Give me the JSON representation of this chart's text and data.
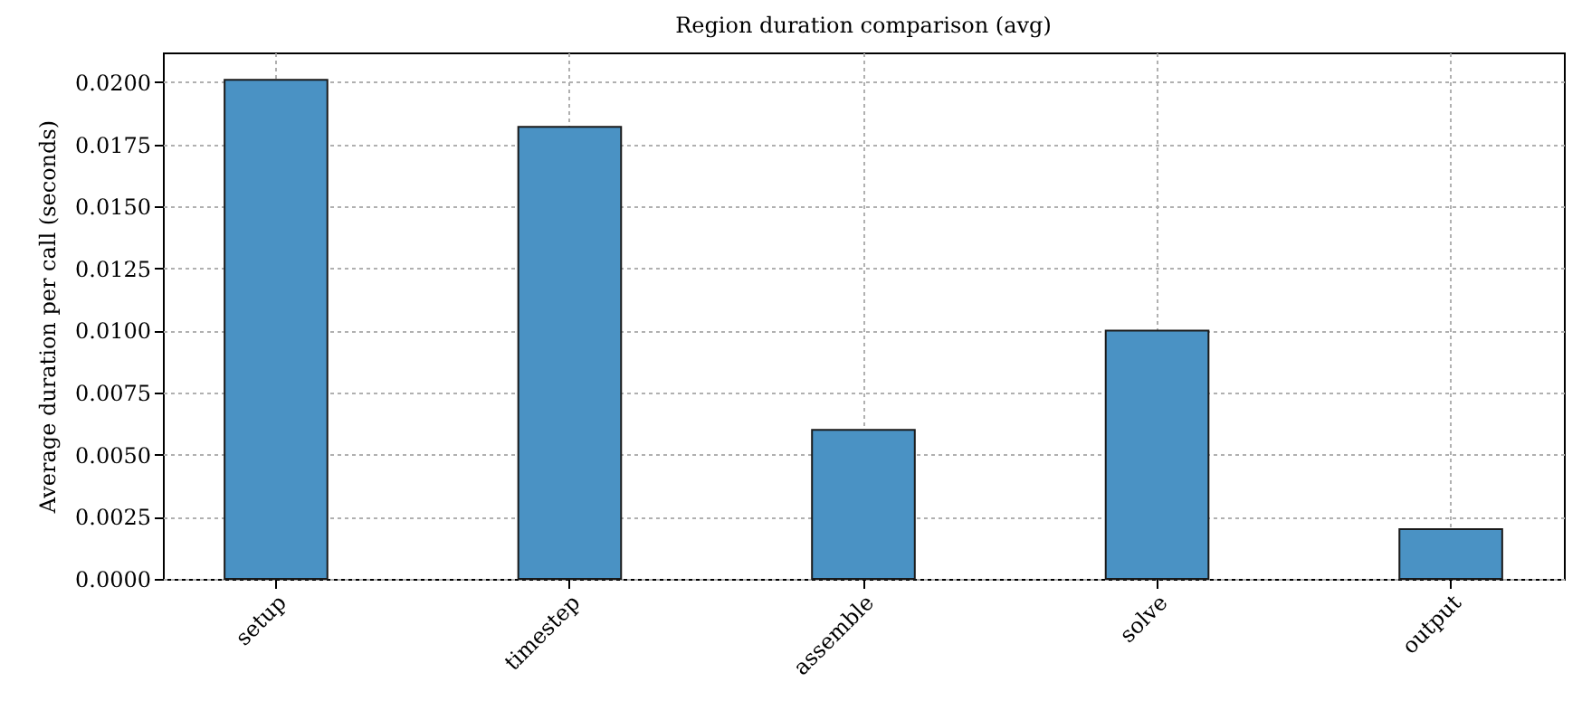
{
  "chart_data": {
    "type": "bar",
    "title": "Region duration comparison (avg)",
    "ylabel": "Average duration per call (seconds)",
    "categories": [
      "setup",
      "timestep",
      "assemble",
      "solve",
      "output"
    ],
    "values": [
      0.0201,
      0.0182,
      0.006,
      0.01,
      0.002
    ],
    "color": "#4a92c4",
    "ylim": [
      0,
      0.0212
    ],
    "yticks": [
      {
        "value": 0,
        "label": "0.0000"
      },
      {
        "value": 0.0025,
        "label": "0.0025"
      },
      {
        "value": 0.005,
        "label": "0.0050"
      },
      {
        "value": 0.0075,
        "label": "0.0075"
      },
      {
        "value": 0.01,
        "label": "0.0100"
      },
      {
        "value": 0.0125,
        "label": "0.0125"
      },
      {
        "value": 0.015,
        "label": "0.0150"
      },
      {
        "value": 0.0175,
        "label": "0.0175"
      },
      {
        "value": 0.02,
        "label": "0.0200"
      }
    ],
    "grid": true
  }
}
